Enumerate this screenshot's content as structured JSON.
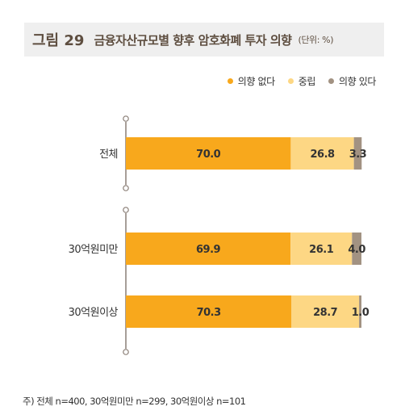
{
  "figure": {
    "number": "그림 29",
    "title": "금융자산규모별 향후 암호화폐 투자 의향",
    "unit": "(단위: %)"
  },
  "colors": {
    "no_intent": "#f8a81c",
    "neutral": "#fdd784",
    "intent": "#a29282",
    "title_bg": "#efefef",
    "title_text": "#5e4e40",
    "axis": "#8a7e76"
  },
  "chart_data": {
    "type": "bar",
    "orientation": "horizontal",
    "stacked": true,
    "title": "금융자산규모별 향후 암호화폐 투자 의향",
    "unit": "(단위: %)",
    "categories": [
      "전체",
      "30억원미만",
      "30억원이상"
    ],
    "series": [
      {
        "name": "의향 없다",
        "values": [
          70.0,
          69.9,
          70.3
        ],
        "labels": [
          "70.0",
          "69.9",
          "70.3"
        ]
      },
      {
        "name": "중립",
        "values": [
          26.8,
          26.1,
          28.7
        ],
        "labels": [
          "26.8",
          "26.1",
          "28.7"
        ]
      },
      {
        "name": "의향 있다",
        "values": [
          3.3,
          4.0,
          1.0
        ],
        "labels": [
          "3.3",
          "4.0",
          "1.0"
        ]
      }
    ],
    "xlim": [
      0,
      100
    ],
    "legend_position": "top-right",
    "grid": false
  },
  "note": "주) 전체 n=400, 30억원미만 n=299, 30억원이상 n=101"
}
